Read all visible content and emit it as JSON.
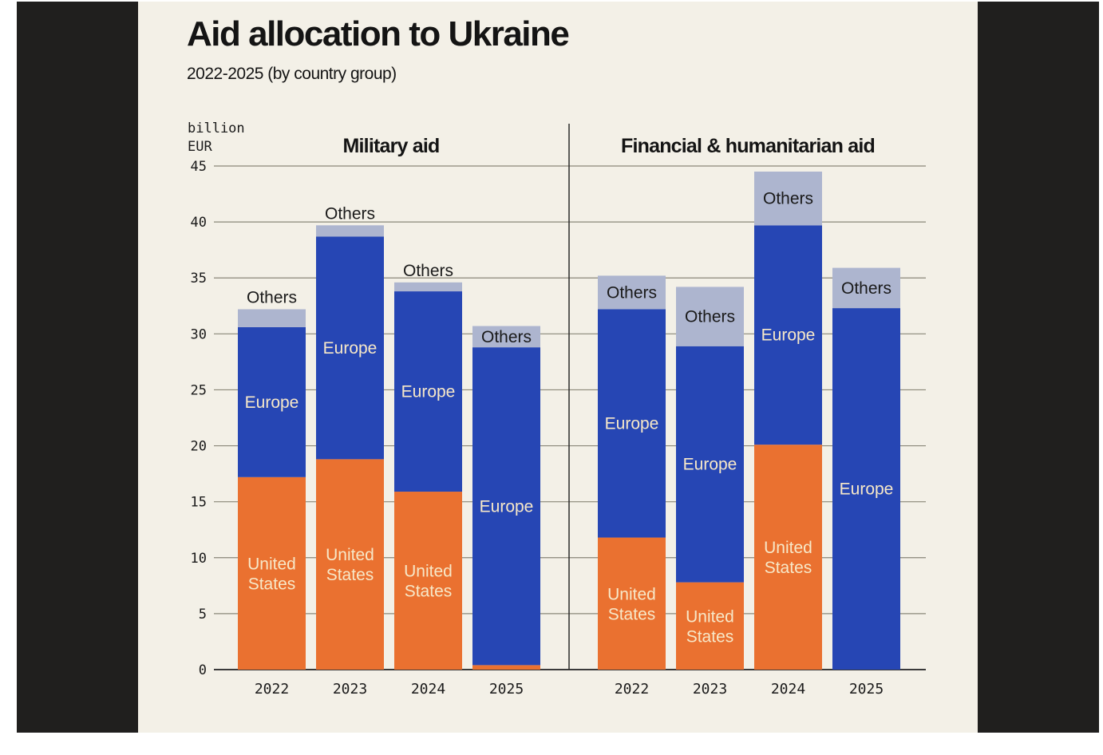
{
  "header": {
    "title": "Aid allocation to Ukraine",
    "subtitle": "2022-2025 (by country group)"
  },
  "colors": {
    "united_states": "#ea7130",
    "europe": "#2646b4",
    "others": "#adb5cf",
    "background": "#f3f0e7",
    "frame": "#201f1e",
    "grid": "#8a8778",
    "axis": "#3a3a3a",
    "label_light": "#f7e8c8",
    "label_dark": "#1a1a1a"
  },
  "chart_data": [
    {
      "type": "bar",
      "stacked": true,
      "title": "Military aid",
      "ylabel": "billion EUR",
      "xlabel": "",
      "ylim": [
        0,
        45
      ],
      "yticks": [
        0,
        5,
        10,
        15,
        20,
        25,
        30,
        35,
        40,
        45
      ],
      "grid": true,
      "categories": [
        "2022",
        "2023",
        "2024",
        "2025"
      ],
      "series": [
        {
          "name": "United States",
          "key": "united_states",
          "label_lines": [
            "United",
            "States"
          ],
          "values": [
            17.2,
            18.8,
            15.9,
            0.4
          ],
          "show_label": [
            true,
            true,
            true,
            false
          ]
        },
        {
          "name": "Europe",
          "key": "europe",
          "label_lines": [
            "Europe"
          ],
          "values": [
            13.4,
            19.9,
            17.9,
            28.4
          ],
          "show_label": [
            true,
            true,
            true,
            true
          ]
        },
        {
          "name": "Others",
          "key": "others",
          "label_lines": [
            "Others"
          ],
          "values": [
            1.6,
            1.0,
            0.8,
            1.9
          ],
          "show_label": [
            true,
            true,
            true,
            true
          ]
        }
      ]
    },
    {
      "type": "bar",
      "stacked": true,
      "title": "Financial & humanitarian aid",
      "ylabel": "billion EUR",
      "xlabel": "",
      "ylim": [
        0,
        45
      ],
      "yticks": [
        0,
        5,
        10,
        15,
        20,
        25,
        30,
        35,
        40,
        45
      ],
      "grid": true,
      "categories": [
        "2022",
        "2023",
        "2024",
        "2025"
      ],
      "series": [
        {
          "name": "United States",
          "key": "united_states",
          "label_lines": [
            "United",
            "States"
          ],
          "values": [
            11.8,
            7.8,
            20.1,
            0
          ],
          "show_label": [
            true,
            true,
            true,
            false
          ]
        },
        {
          "name": "Europe",
          "key": "europe",
          "label_lines": [
            "Europe"
          ],
          "values": [
            20.4,
            21.1,
            19.6,
            32.3
          ],
          "show_label": [
            true,
            true,
            true,
            true
          ]
        },
        {
          "name": "Others",
          "key": "others",
          "label_lines": [
            "Others"
          ],
          "values": [
            3.0,
            5.3,
            4.8,
            3.6
          ],
          "show_label": [
            true,
            true,
            true,
            true
          ]
        }
      ]
    }
  ],
  "yaxis_unit_lines": [
    "billion",
    "EUR"
  ]
}
